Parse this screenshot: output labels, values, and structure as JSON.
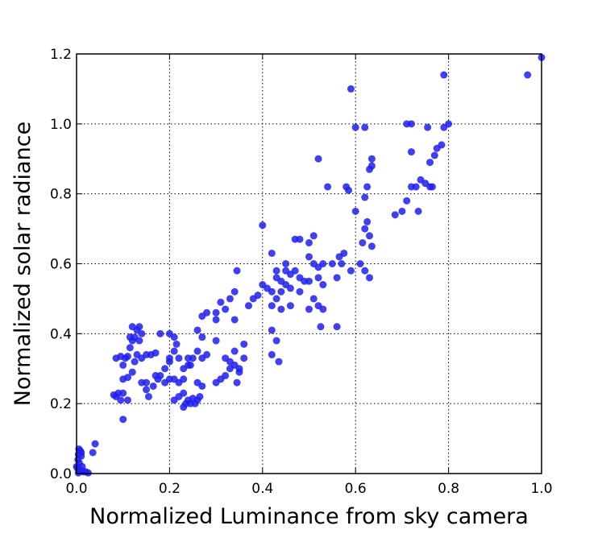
{
  "chart_data": {
    "type": "scatter",
    "title": "",
    "xlabel": "Normalized Luminance from sky camera",
    "ylabel": "Normalized solar radiance",
    "xlim": [
      0.0,
      1.0
    ],
    "ylim": [
      0.0,
      1.2
    ],
    "x_ticks": [
      "0.0",
      "0.2",
      "0.4",
      "0.6",
      "0.8",
      "1.0"
    ],
    "y_ticks": [
      "0.0",
      "0.2",
      "0.4",
      "0.6",
      "0.8",
      "1.0",
      "1.2"
    ],
    "x_tick_values": [
      0.0,
      0.2,
      0.4,
      0.6,
      0.8,
      1.0
    ],
    "y_tick_values": [
      0.0,
      0.2,
      0.4,
      0.6,
      0.8,
      1.0,
      1.2
    ],
    "grid": true,
    "grid_style": "dotted",
    "marker_color": "#1f1fef",
    "series": [
      {
        "points": [
          [
            0.005,
            0.07
          ],
          [
            0.008,
            0.065
          ],
          [
            0.004,
            0.055
          ],
          [
            0.01,
            0.05
          ],
          [
            0.003,
            0.04
          ],
          [
            0.006,
            0.03
          ],
          [
            0.012,
            0.02
          ],
          [
            0.002,
            0.015
          ],
          [
            0.008,
            0.01
          ],
          [
            0.015,
            0.005
          ],
          [
            0.004,
            0.002
          ],
          [
            0.02,
            0.005
          ],
          [
            0.025,
            0.002
          ],
          [
            0.0,
            0.02
          ],
          [
            0.01,
            0.06
          ],
          [
            0.04,
            0.085
          ],
          [
            0.035,
            0.06
          ],
          [
            0.1,
            0.155
          ],
          [
            0.08,
            0.225
          ],
          [
            0.085,
            0.22
          ],
          [
            0.09,
            0.23
          ],
          [
            0.1,
            0.23
          ],
          [
            0.095,
            0.21
          ],
          [
            0.11,
            0.21
          ],
          [
            0.085,
            0.33
          ],
          [
            0.095,
            0.335
          ],
          [
            0.1,
            0.31
          ],
          [
            0.105,
            0.33
          ],
          [
            0.11,
            0.335
          ],
          [
            0.1,
            0.27
          ],
          [
            0.11,
            0.275
          ],
          [
            0.12,
            0.29
          ],
          [
            0.125,
            0.32
          ],
          [
            0.115,
            0.36
          ],
          [
            0.12,
            0.38
          ],
          [
            0.115,
            0.39
          ],
          [
            0.125,
            0.39
          ],
          [
            0.12,
            0.42
          ],
          [
            0.135,
            0.42
          ],
          [
            0.13,
            0.41
          ],
          [
            0.14,
            0.4
          ],
          [
            0.135,
            0.38
          ],
          [
            0.13,
            0.34
          ],
          [
            0.14,
            0.33
          ],
          [
            0.15,
            0.34
          ],
          [
            0.16,
            0.34
          ],
          [
            0.17,
            0.345
          ],
          [
            0.14,
            0.26
          ],
          [
            0.15,
            0.26
          ],
          [
            0.15,
            0.24
          ],
          [
            0.155,
            0.22
          ],
          [
            0.165,
            0.25
          ],
          [
            0.17,
            0.28
          ],
          [
            0.175,
            0.27
          ],
          [
            0.18,
            0.28
          ],
          [
            0.19,
            0.3
          ],
          [
            0.2,
            0.33
          ],
          [
            0.2,
            0.32
          ],
          [
            0.21,
            0.35
          ],
          [
            0.22,
            0.33
          ],
          [
            0.215,
            0.37
          ],
          [
            0.18,
            0.4
          ],
          [
            0.2,
            0.4
          ],
          [
            0.21,
            0.39
          ],
          [
            0.19,
            0.26
          ],
          [
            0.2,
            0.27
          ],
          [
            0.21,
            0.27
          ],
          [
            0.22,
            0.26
          ],
          [
            0.23,
            0.27
          ],
          [
            0.24,
            0.33
          ],
          [
            0.245,
            0.31
          ],
          [
            0.25,
            0.33
          ],
          [
            0.26,
            0.35
          ],
          [
            0.27,
            0.33
          ],
          [
            0.28,
            0.34
          ],
          [
            0.3,
            0.38
          ],
          [
            0.27,
            0.39
          ],
          [
            0.26,
            0.41
          ],
          [
            0.27,
            0.45
          ],
          [
            0.28,
            0.46
          ],
          [
            0.3,
            0.44
          ],
          [
            0.3,
            0.46
          ],
          [
            0.31,
            0.49
          ],
          [
            0.32,
            0.47
          ],
          [
            0.33,
            0.5
          ],
          [
            0.34,
            0.52
          ],
          [
            0.345,
            0.58
          ],
          [
            0.23,
            0.19
          ],
          [
            0.235,
            0.2
          ],
          [
            0.24,
            0.21
          ],
          [
            0.245,
            0.2
          ],
          [
            0.25,
            0.215
          ],
          [
            0.255,
            0.2
          ],
          [
            0.26,
            0.21
          ],
          [
            0.265,
            0.22
          ],
          [
            0.27,
            0.25
          ],
          [
            0.26,
            0.26
          ],
          [
            0.23,
            0.3
          ],
          [
            0.24,
            0.31
          ],
          [
            0.21,
            0.21
          ],
          [
            0.22,
            0.22
          ],
          [
            0.23,
            0.23
          ],
          [
            0.3,
            0.26
          ],
          [
            0.31,
            0.27
          ],
          [
            0.32,
            0.28
          ],
          [
            0.33,
            0.3
          ],
          [
            0.34,
            0.31
          ],
          [
            0.35,
            0.29
          ],
          [
            0.345,
            0.26
          ],
          [
            0.35,
            0.3
          ],
          [
            0.36,
            0.37
          ],
          [
            0.34,
            0.35
          ],
          [
            0.33,
            0.32
          ],
          [
            0.36,
            0.33
          ],
          [
            0.32,
            0.33
          ],
          [
            0.34,
            0.44
          ],
          [
            0.37,
            0.48
          ],
          [
            0.38,
            0.5
          ],
          [
            0.39,
            0.51
          ],
          [
            0.4,
            0.54
          ],
          [
            0.41,
            0.53
          ],
          [
            0.42,
            0.52
          ],
          [
            0.4,
            0.71
          ],
          [
            0.42,
            0.63
          ],
          [
            0.43,
            0.58
          ],
          [
            0.44,
            0.55
          ],
          [
            0.45,
            0.54
          ],
          [
            0.46,
            0.53
          ],
          [
            0.45,
            0.6
          ],
          [
            0.46,
            0.57
          ],
          [
            0.47,
            0.58
          ],
          [
            0.48,
            0.56
          ],
          [
            0.47,
            0.67
          ],
          [
            0.48,
            0.67
          ],
          [
            0.5,
            0.66
          ],
          [
            0.51,
            0.68
          ],
          [
            0.5,
            0.62
          ],
          [
            0.51,
            0.6
          ],
          [
            0.52,
            0.59
          ],
          [
            0.53,
            0.6
          ],
          [
            0.52,
            0.56
          ],
          [
            0.53,
            0.54
          ],
          [
            0.49,
            0.55
          ],
          [
            0.5,
            0.55
          ],
          [
            0.42,
            0.48
          ],
          [
            0.43,
            0.5
          ],
          [
            0.44,
            0.47
          ],
          [
            0.46,
            0.48
          ],
          [
            0.44,
            0.52
          ],
          [
            0.48,
            0.52
          ],
          [
            0.42,
            0.41
          ],
          [
            0.43,
            0.38
          ],
          [
            0.42,
            0.34
          ],
          [
            0.435,
            0.32
          ],
          [
            0.5,
            0.47
          ],
          [
            0.525,
            0.42
          ],
          [
            0.56,
            0.42
          ],
          [
            0.55,
            0.6
          ],
          [
            0.565,
            0.62
          ],
          [
            0.575,
            0.63
          ],
          [
            0.58,
            0.82
          ],
          [
            0.585,
            0.81
          ],
          [
            0.54,
            0.82
          ],
          [
            0.52,
            0.9
          ],
          [
            0.59,
            1.1
          ],
          [
            0.6,
            0.99
          ],
          [
            0.59,
            0.58
          ],
          [
            0.6,
            0.75
          ],
          [
            0.61,
            0.6
          ],
          [
            0.615,
            0.66
          ],
          [
            0.62,
            0.58
          ],
          [
            0.63,
            0.56
          ],
          [
            0.62,
            0.7
          ],
          [
            0.625,
            0.72
          ],
          [
            0.63,
            0.68
          ],
          [
            0.635,
            0.65
          ],
          [
            0.62,
            0.79
          ],
          [
            0.625,
            0.82
          ],
          [
            0.63,
            0.87
          ],
          [
            0.635,
            0.88
          ],
          [
            0.635,
            0.9
          ],
          [
            0.62,
            0.99
          ],
          [
            0.685,
            0.74
          ],
          [
            0.7,
            0.75
          ],
          [
            0.71,
            0.78
          ],
          [
            0.735,
            0.75
          ],
          [
            0.72,
            0.82
          ],
          [
            0.73,
            0.82
          ],
          [
            0.74,
            0.84
          ],
          [
            0.75,
            0.83
          ],
          [
            0.76,
            0.82
          ],
          [
            0.765,
            0.82
          ],
          [
            0.72,
            0.92
          ],
          [
            0.76,
            0.89
          ],
          [
            0.77,
            0.91
          ],
          [
            0.775,
            0.93
          ],
          [
            0.785,
            0.94
          ],
          [
            0.79,
            0.99
          ],
          [
            0.8,
            1.0
          ],
          [
            0.71,
            1.0
          ],
          [
            0.72,
            1.0
          ],
          [
            0.755,
            0.99
          ],
          [
            0.79,
            1.14
          ],
          [
            0.97,
            1.14
          ],
          [
            1.0,
            1.19
          ],
          [
            0.56,
            0.56
          ],
          [
            0.57,
            0.6
          ],
          [
            0.53,
            0.47
          ],
          [
            0.52,
            0.48
          ],
          [
            0.51,
            0.5
          ],
          [
            0.45,
            0.58
          ],
          [
            0.43,
            0.56
          ]
        ]
      }
    ]
  }
}
